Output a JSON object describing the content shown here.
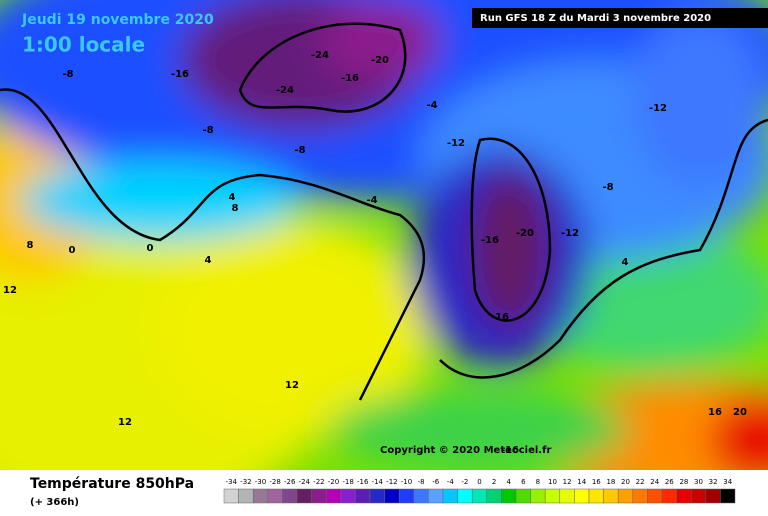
{
  "header": {
    "date": "Jeudi 19 novembre 2020",
    "time": "1:00 locale",
    "run": "Run GFS 18 Z du Mardi 3 novembre 2020"
  },
  "map": {
    "labels": [
      "-24",
      "-24",
      "-20",
      "-16",
      "-16",
      "-8",
      "-8",
      "-4",
      "-12",
      "-12",
      "-8",
      "-20",
      "-16",
      "-12",
      "-16",
      "-8",
      "-4",
      "4",
      "8",
      "0",
      "4",
      "12",
      "8",
      "12",
      "12",
      "16",
      "20",
      "-16",
      "4",
      "0"
    ],
    "copyright": "Copyright © 2020 Meteociel.fr"
  },
  "footer": {
    "title": "Température 850hPa",
    "lead": "(+ 366h)"
  },
  "scale": {
    "values": [
      -34,
      -32,
      -30,
      -28,
      -26,
      -24,
      -22,
      -20,
      -18,
      -16,
      -14,
      -12,
      -10,
      -8,
      -6,
      -4,
      -2,
      0,
      2,
      4,
      6,
      8,
      10,
      12,
      14,
      16,
      18,
      20,
      22,
      24,
      26,
      28,
      30,
      32,
      34
    ],
    "colors": [
      "#d2d2d2",
      "#b4b4b4",
      "#967896",
      "#a064a0",
      "#82468c",
      "#641e64",
      "#8c1e8c",
      "#b400b4",
      "#8c1ed2",
      "#5a1eb4",
      "#2828c8",
      "#0000c8",
      "#1e3cff",
      "#3c78ff",
      "#5aa0ff",
      "#00c8ff",
      "#00ffff",
      "#00e6b4",
      "#00d278",
      "#00c800",
      "#50dc00",
      "#96f000",
      "#c8ff00",
      "#e6ff00",
      "#ffff00",
      "#ffe600",
      "#ffc800",
      "#ffa000",
      "#ff7800",
      "#ff5000",
      "#ff2800",
      "#e60000",
      "#c80000",
      "#a00000",
      "#000000"
    ]
  }
}
